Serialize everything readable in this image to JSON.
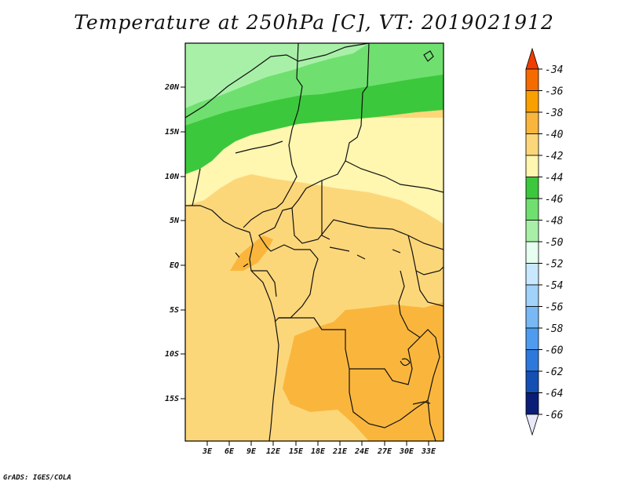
{
  "title": "Temperature at 250hPa [C], VT: 2019021912",
  "credit": "GrADS: IGES/COLA",
  "map": {
    "lat_labels": [
      "20N",
      "15N",
      "10N",
      "5N",
      "EQ",
      "5S",
      "10S",
      "15S"
    ],
    "lon_labels": [
      "3E",
      "6E",
      "9E",
      "12E",
      "15E",
      "18E",
      "21E",
      "24E",
      "27E",
      "30E",
      "33E"
    ]
  },
  "colorbar": {
    "levels": [
      "-34",
      "-36",
      "-38",
      "-40",
      "-42",
      "-44",
      "-46",
      "-48",
      "-50",
      "-52",
      "-54",
      "-56",
      "-58",
      "-60",
      "-62",
      "-64",
      "-66"
    ],
    "colors": [
      "#f03c00",
      "#f56b00",
      "#f9a000",
      "#fab63c",
      "#fcd77a",
      "#fff6b0",
      "#3cc83c",
      "#6fe06f",
      "#a8f0a8",
      "#e6fff0",
      "#c8e8ff",
      "#a0d2fa",
      "#78b9f5",
      "#4e9cf0",
      "#2d78dc",
      "#1450b4",
      "#0a1e78",
      "#e8e8f8"
    ]
  }
}
